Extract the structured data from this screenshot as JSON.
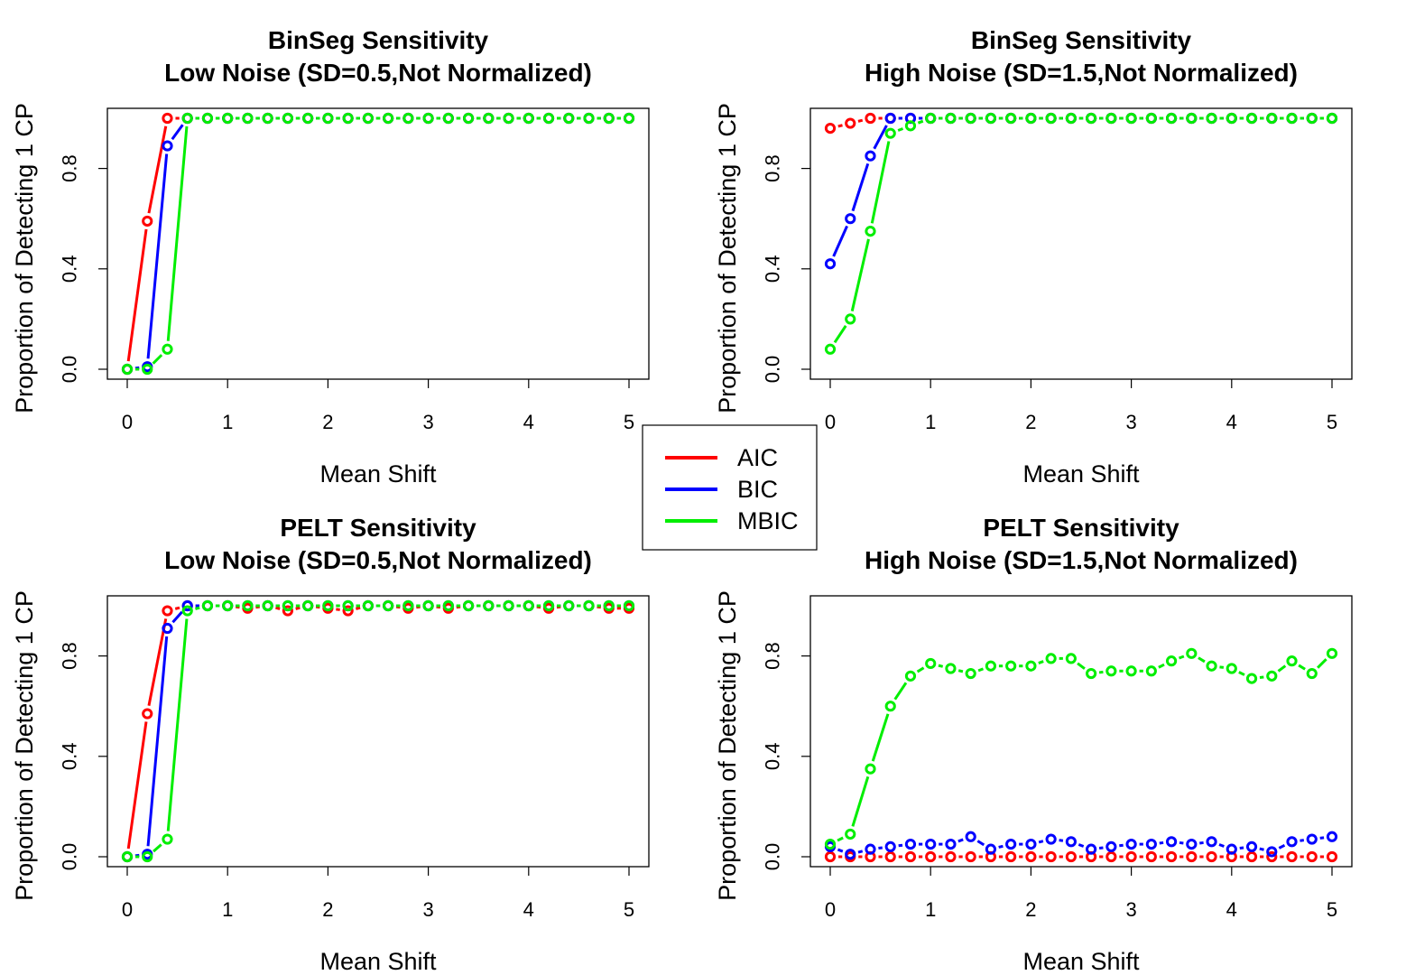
{
  "colors": {
    "AIC": "#ff0000",
    "BIC": "#0000ff",
    "MBIC": "#00ee00"
  },
  "legend": {
    "placement": "center",
    "entries": [
      "AIC",
      "BIC",
      "MBIC"
    ]
  },
  "chart_data": [
    {
      "type": "line",
      "title": "BinSeg Sensitivity",
      "subtitle": "Low Noise (SD=0.5,Not Normalized)",
      "xlabel": "Mean Shift",
      "ylabel": "Proportion of Detecting 1 CP",
      "xlim": [
        0,
        5
      ],
      "ylim": [
        0,
        1
      ],
      "xticks": [
        "0",
        "1",
        "2",
        "3",
        "4",
        "5"
      ],
      "yticks": [
        "0.0",
        "0.4",
        "0.8"
      ],
      "x": [
        0,
        0.2,
        0.4,
        0.6,
        0.8,
        1.0,
        1.2,
        1.4,
        1.6,
        1.8,
        2.0,
        2.2,
        2.4,
        2.6,
        2.8,
        3.0,
        3.2,
        3.4,
        3.6,
        3.8,
        4.0,
        4.2,
        4.4,
        4.6,
        4.8,
        5.0
      ],
      "series": [
        {
          "name": "AIC",
          "values": [
            0,
            0.59,
            1.0,
            1.0,
            1.0,
            1.0,
            1.0,
            1.0,
            1.0,
            1.0,
            1.0,
            1.0,
            1.0,
            1.0,
            1.0,
            1.0,
            1.0,
            1.0,
            1.0,
            1.0,
            1.0,
            1.0,
            1.0,
            1.0,
            1.0,
            1.0
          ]
        },
        {
          "name": "BIC",
          "values": [
            0,
            0.01,
            0.89,
            1.0,
            1.0,
            1.0,
            1.0,
            1.0,
            1.0,
            1.0,
            1.0,
            1.0,
            1.0,
            1.0,
            1.0,
            1.0,
            1.0,
            1.0,
            1.0,
            1.0,
            1.0,
            1.0,
            1.0,
            1.0,
            1.0,
            1.0
          ]
        },
        {
          "name": "MBIC",
          "values": [
            0,
            0,
            0.08,
            1.0,
            1.0,
            1.0,
            1.0,
            1.0,
            1.0,
            1.0,
            1.0,
            1.0,
            1.0,
            1.0,
            1.0,
            1.0,
            1.0,
            1.0,
            1.0,
            1.0,
            1.0,
            1.0,
            1.0,
            1.0,
            1.0,
            1.0
          ]
        }
      ]
    },
    {
      "type": "line",
      "title": "BinSeg Sensitivity",
      "subtitle": "High Noise (SD=1.5,Not Normalized)",
      "xlabel": "Mean Shift",
      "ylabel": "Proportion of Detecting 1 CP",
      "xlim": [
        0,
        5
      ],
      "ylim": [
        0,
        1
      ],
      "xticks": [
        "0",
        "1",
        "2",
        "3",
        "4",
        "5"
      ],
      "yticks": [
        "0.0",
        "0.4",
        "0.8"
      ],
      "x": [
        0,
        0.2,
        0.4,
        0.6,
        0.8,
        1.0,
        1.2,
        1.4,
        1.6,
        1.8,
        2.0,
        2.2,
        2.4,
        2.6,
        2.8,
        3.0,
        3.2,
        3.4,
        3.6,
        3.8,
        4.0,
        4.2,
        4.4,
        4.6,
        4.8,
        5.0
      ],
      "series": [
        {
          "name": "AIC",
          "values": [
            0.96,
            0.98,
            1.0,
            1.0,
            1.0,
            1.0,
            1.0,
            1.0,
            1.0,
            1.0,
            1.0,
            1.0,
            1.0,
            1.0,
            1.0,
            1.0,
            1.0,
            1.0,
            1.0,
            1.0,
            1.0,
            1.0,
            1.0,
            1.0,
            1.0,
            1.0
          ]
        },
        {
          "name": "BIC",
          "values": [
            0.42,
            0.6,
            0.85,
            1.0,
            1.0,
            1.0,
            1.0,
            1.0,
            1.0,
            1.0,
            1.0,
            1.0,
            1.0,
            1.0,
            1.0,
            1.0,
            1.0,
            1.0,
            1.0,
            1.0,
            1.0,
            1.0,
            1.0,
            1.0,
            1.0,
            1.0
          ]
        },
        {
          "name": "MBIC",
          "values": [
            0.08,
            0.2,
            0.55,
            0.94,
            0.97,
            1.0,
            1.0,
            1.0,
            1.0,
            1.0,
            1.0,
            1.0,
            1.0,
            1.0,
            1.0,
            1.0,
            1.0,
            1.0,
            1.0,
            1.0,
            1.0,
            1.0,
            1.0,
            1.0,
            1.0,
            1.0
          ]
        }
      ]
    },
    {
      "type": "line",
      "title": "PELT Sensitivity",
      "subtitle": "Low Noise (SD=0.5,Not Normalized)",
      "xlabel": "Mean Shift",
      "ylabel": "Proportion of Detecting 1 CP",
      "xlim": [
        0,
        5
      ],
      "ylim": [
        0,
        1
      ],
      "xticks": [
        "0",
        "1",
        "2",
        "3",
        "4",
        "5"
      ],
      "yticks": [
        "0.0",
        "0.4",
        "0.8"
      ],
      "x": [
        0,
        0.2,
        0.4,
        0.6,
        0.8,
        1.0,
        1.2,
        1.4,
        1.6,
        1.8,
        2.0,
        2.2,
        2.4,
        2.6,
        2.8,
        3.0,
        3.2,
        3.4,
        3.6,
        3.8,
        4.0,
        4.2,
        4.4,
        4.6,
        4.8,
        5.0
      ],
      "series": [
        {
          "name": "AIC",
          "values": [
            0,
            0.57,
            0.98,
            1.0,
            1.0,
            1.0,
            0.99,
            1.0,
            0.98,
            1.0,
            0.99,
            0.98,
            1.0,
            1.0,
            0.99,
            1.0,
            0.99,
            1.0,
            1.0,
            1.0,
            1.0,
            0.99,
            1.0,
            1.0,
            0.99,
            0.99
          ]
        },
        {
          "name": "BIC",
          "values": [
            0,
            0.01,
            0.91,
            1.0,
            1.0,
            1.0,
            1.0,
            1.0,
            1.0,
            1.0,
            1.0,
            1.0,
            1.0,
            1.0,
            1.0,
            1.0,
            1.0,
            1.0,
            1.0,
            1.0,
            1.0,
            1.0,
            1.0,
            1.0,
            1.0,
            1.0
          ]
        },
        {
          "name": "MBIC",
          "values": [
            0,
            0,
            0.07,
            0.98,
            1.0,
            1.0,
            1.0,
            1.0,
            1.0,
            1.0,
            1.0,
            1.0,
            1.0,
            1.0,
            1.0,
            1.0,
            1.0,
            1.0,
            1.0,
            1.0,
            1.0,
            1.0,
            1.0,
            1.0,
            1.0,
            1.0
          ]
        }
      ]
    },
    {
      "type": "line",
      "title": "PELT Sensitivity",
      "subtitle": "High Noise (SD=1.5,Not Normalized)",
      "xlabel": "Mean Shift",
      "ylabel": "Proportion of Detecting 1 CP",
      "xlim": [
        0,
        5
      ],
      "ylim": [
        0,
        1
      ],
      "xticks": [
        "0",
        "1",
        "2",
        "3",
        "4",
        "5"
      ],
      "yticks": [
        "0.0",
        "0.4",
        "0.8"
      ],
      "x": [
        0,
        0.2,
        0.4,
        0.6,
        0.8,
        1.0,
        1.2,
        1.4,
        1.6,
        1.8,
        2.0,
        2.2,
        2.4,
        2.6,
        2.8,
        3.0,
        3.2,
        3.4,
        3.6,
        3.8,
        4.0,
        4.2,
        4.4,
        4.6,
        4.8,
        5.0
      ],
      "series": [
        {
          "name": "AIC",
          "values": [
            0,
            0,
            0,
            0,
            0,
            0,
            0,
            0,
            0,
            0,
            0,
            0,
            0,
            0,
            0,
            0,
            0,
            0,
            0,
            0,
            0,
            0,
            0,
            0,
            0,
            0
          ]
        },
        {
          "name": "BIC",
          "values": [
            0.04,
            0.01,
            0.03,
            0.04,
            0.05,
            0.05,
            0.05,
            0.08,
            0.03,
            0.05,
            0.05,
            0.07,
            0.06,
            0.03,
            0.04,
            0.05,
            0.05,
            0.06,
            0.05,
            0.06,
            0.03,
            0.04,
            0.02,
            0.06,
            0.07,
            0.08
          ]
        },
        {
          "name": "MBIC",
          "values": [
            0.05,
            0.09,
            0.35,
            0.6,
            0.72,
            0.77,
            0.75,
            0.73,
            0.76,
            0.76,
            0.76,
            0.79,
            0.79,
            0.73,
            0.74,
            0.74,
            0.74,
            0.78,
            0.81,
            0.76,
            0.75,
            0.71,
            0.72,
            0.78,
            0.73,
            0.81
          ]
        }
      ]
    }
  ]
}
